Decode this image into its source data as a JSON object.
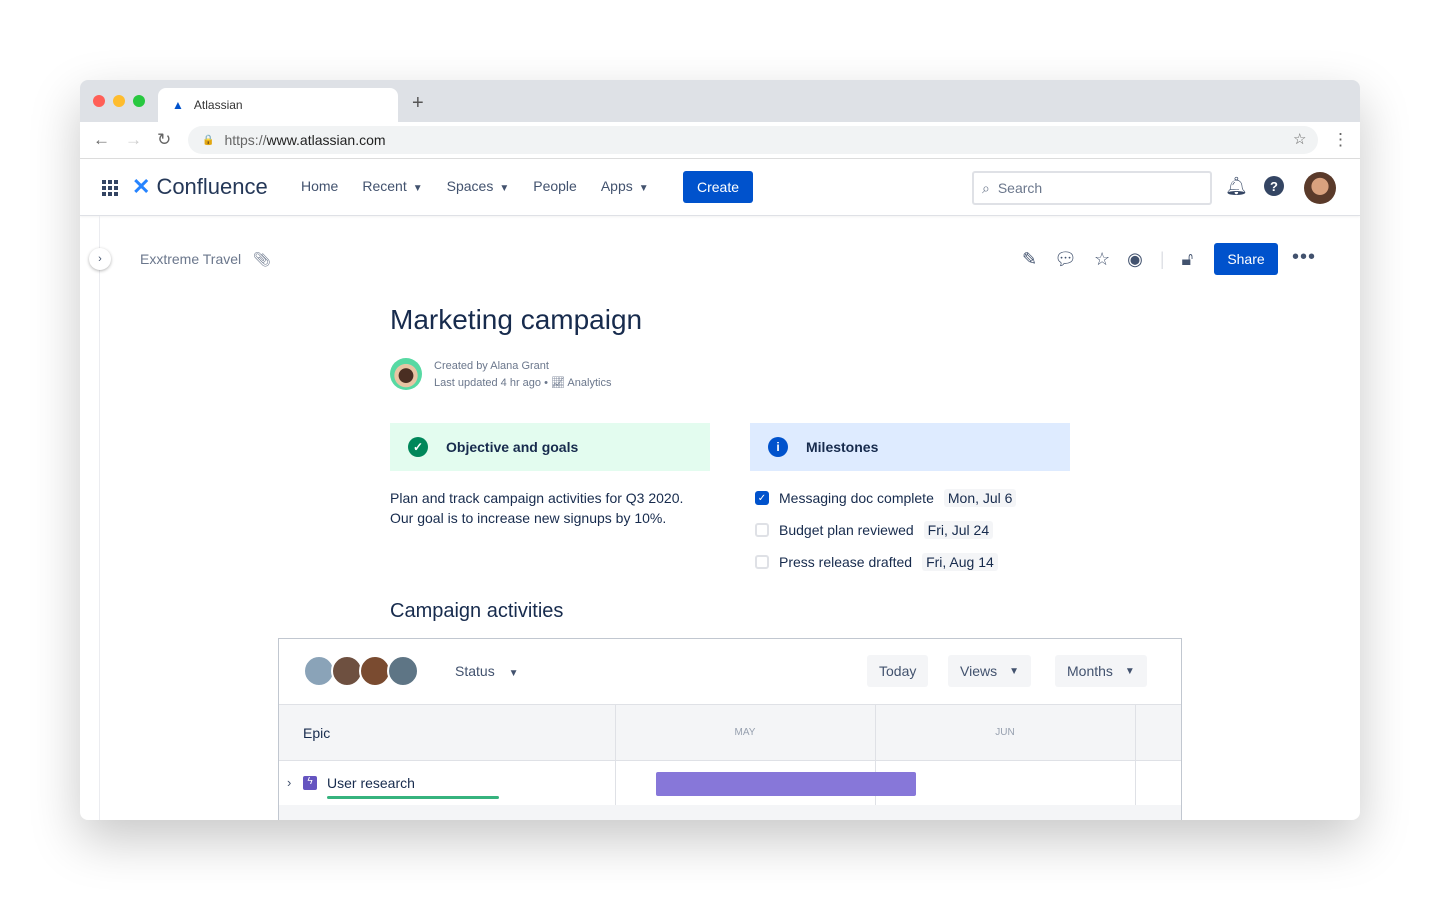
{
  "browser": {
    "tab_title": "Atlassian",
    "url_prefix": "https://",
    "url_host": "www.atlassian.com"
  },
  "nav": {
    "product": "Confluence",
    "items": [
      {
        "label": "Home"
      },
      {
        "label": "Recent"
      },
      {
        "label": "Spaces"
      },
      {
        "label": "People"
      },
      {
        "label": "Apps"
      }
    ],
    "create": "Create",
    "search_placeholder": "Search"
  },
  "page": {
    "breadcrumb": "Exxtreme Travel",
    "share": "Share",
    "title": "Marketing campaign",
    "created_by": "Created by Alana Grant",
    "last_updated": "Last updated 4 hr ago",
    "analytics": "Analytics"
  },
  "objective": {
    "title": "Objective and goals",
    "line1": "Plan and track campaign activities for Q3 2020.",
    "line2": "Our goal is to increase new signups by 10%.",
    "color": "#e3fcef"
  },
  "milestones": {
    "title": "Milestones",
    "color": "#deebff",
    "items": [
      {
        "label": "Messaging doc complete",
        "date": "Mon, Jul 6",
        "checked": true
      },
      {
        "label": "Budget plan reviewed",
        "date": "Fri, Jul 24",
        "checked": false
      },
      {
        "label": "Press release drafted",
        "date": "Fri, Aug 14",
        "checked": false
      }
    ]
  },
  "activities": {
    "title": "Campaign activities",
    "status": "Status",
    "today": "Today",
    "views": "Views",
    "months": "Months",
    "epic_header": "Epic",
    "columns": [
      "MAY",
      "JUN"
    ],
    "rows": [
      {
        "label": "User research",
        "bar_color": "#8777d9",
        "progress": 1.0,
        "progress_color": "#36b37e"
      }
    ]
  }
}
